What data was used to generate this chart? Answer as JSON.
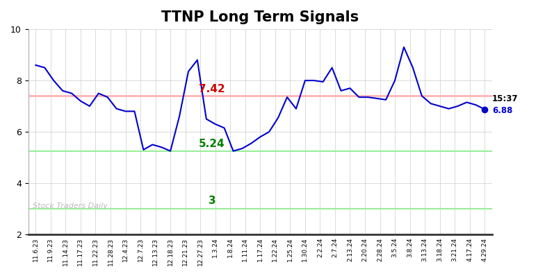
{
  "title": "TTNP Long Term Signals",
  "x_labels": [
    "11.6.23",
    "11.9.23",
    "11.14.23",
    "11.17.23",
    "11.22.23",
    "11.28.23",
    "12.4.23",
    "12.7.23",
    "12.13.23",
    "12.18.23",
    "12.21.23",
    "12.27.23",
    "1.3.24",
    "1.8.24",
    "1.11.24",
    "1.17.24",
    "1.22.24",
    "1.25.24",
    "1.30.24",
    "2.2.24",
    "2.7.24",
    "2.13.24",
    "2.20.24",
    "2.28.24",
    "3.5.24",
    "3.8.24",
    "3.13.24",
    "3.18.24",
    "3.21.24",
    "4.17.24",
    "4.29.24"
  ],
  "y_values": [
    8.6,
    8.5,
    8.0,
    7.6,
    7.5,
    7.2,
    7.0,
    7.5,
    7.35,
    6.9,
    6.8,
    6.8,
    5.3,
    5.5,
    5.4,
    5.25,
    6.6,
    8.35,
    8.8,
    6.5,
    6.3,
    6.15,
    5.25,
    5.35,
    5.55,
    5.8,
    6.0,
    6.55,
    7.35,
    6.9,
    8.0,
    8.0,
    7.95,
    8.5,
    7.6,
    7.7,
    7.35,
    7.35,
    7.3,
    7.25,
    8.0,
    9.3,
    8.5,
    7.4,
    7.1,
    7.0,
    6.9,
    7.0,
    7.15,
    7.05,
    6.88
  ],
  "hline_red": 7.42,
  "hline_red_color": "#ffb3b3",
  "hline_green1": 5.24,
  "hline_green2": 3.0,
  "hline_green_color": "#99ee99",
  "line_color": "#0000cc",
  "annotation_red_text": "7.42",
  "annotation_red_color": "#cc0000",
  "annotation_green1_text": "5.24",
  "annotation_green1_color": "green",
  "annotation_green2_text": "3",
  "annotation_green2_color": "green",
  "last_time": "15:37",
  "last_value": "6.88",
  "last_value_color": "#0000cc",
  "watermark": "Stock Traders Daily",
  "watermark_color": "#bbbbbb",
  "ylim": [
    2,
    10
  ],
  "yticks": [
    2,
    4,
    6,
    8,
    10
  ],
  "background_color": "#ffffff",
  "grid_color": "#cccccc",
  "title_fontsize": 15
}
